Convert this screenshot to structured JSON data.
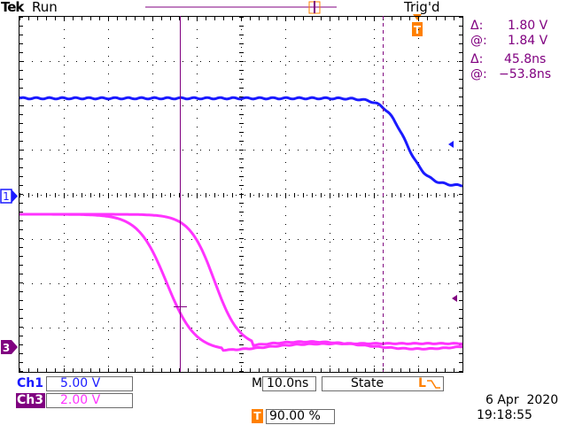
{
  "header": {
    "brand": "Tek",
    "run_state": "Run",
    "trigger_state": "Trig'd"
  },
  "cursor_readout": {
    "voltage_delta_symbol": "Δ:",
    "voltage_delta": "1.80 V",
    "voltage_at_symbol": "@:",
    "voltage_at": "1.84 V",
    "time_delta_symbol": "Δ:",
    "time_delta": "45.8ns",
    "time_at_symbol": "@:",
    "time_at": "−53.8ns"
  },
  "channels": [
    {
      "label": "Ch1",
      "scale": "5.00 V",
      "color": "#1a1aff",
      "marker": "1"
    },
    {
      "label": "Ch3",
      "scale": "2.00 V",
      "color": "#ff33ff",
      "marker": "3"
    }
  ],
  "timebase": {
    "label": "M",
    "value": "10.0ns"
  },
  "trigger": {
    "mode": "State",
    "marker": "T",
    "position": "90.00 %",
    "slope_label": "L"
  },
  "datetime": {
    "date": "6 Apr  2020",
    "time": "19:18:55"
  },
  "colors": {
    "graticule": "#000000",
    "ch1": "#1a1aff",
    "ch3": "#ff33ff",
    "cursor": "#800080",
    "trigger": "#ff8000"
  }
}
